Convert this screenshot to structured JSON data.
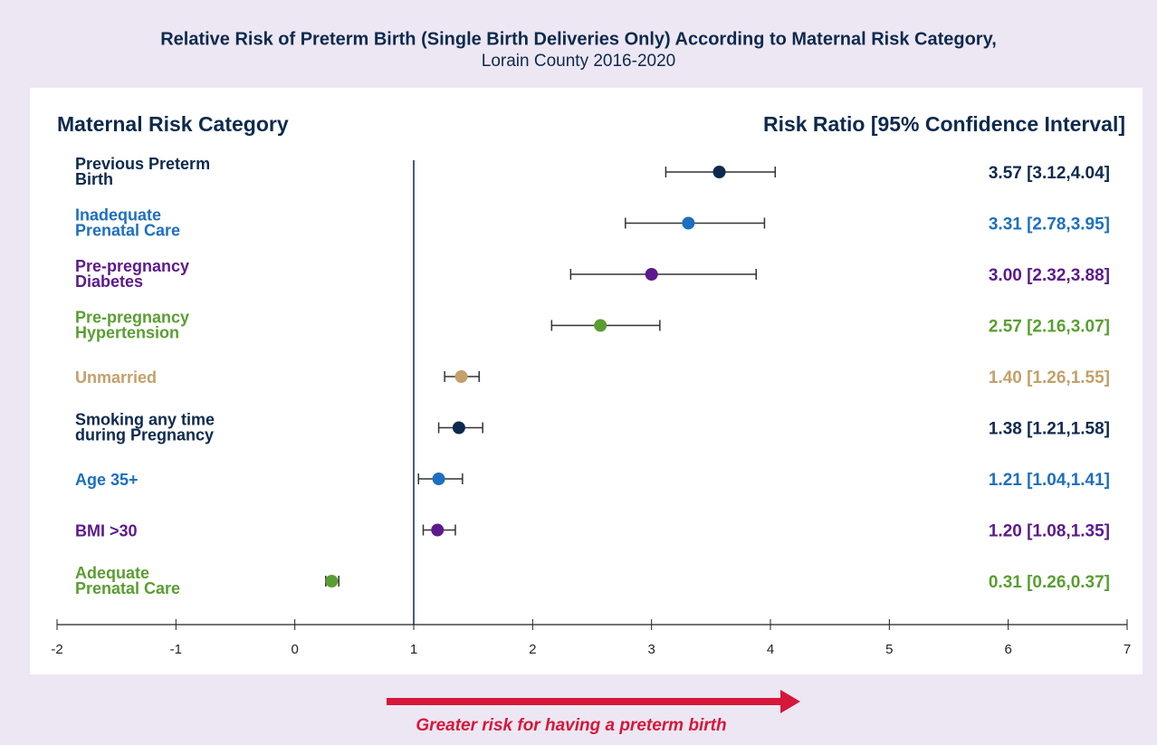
{
  "chart_data": {
    "type": "forest",
    "title": "Relative Risk of Preterm Birth (Single Birth Deliveries Only) According to Maternal Risk Category,",
    "subtitle": "Lorain County 2016-2020",
    "category_header": "Maternal Risk Category",
    "value_header": "Risk Ratio [95% Confidence Interval]",
    "categories": [
      [
        "Previous Preterm",
        "Birth"
      ],
      [
        "Inadequate",
        "Prenatal Care"
      ],
      [
        "Pre-pregnancy",
        "Diabetes"
      ],
      [
        "Pre-pregnancy",
        "Hypertension"
      ],
      [
        "Unmarried"
      ],
      [
        "Smoking any time",
        "during Pregnancy"
      ],
      [
        "Age 35+"
      ],
      [
        "BMI >30"
      ],
      [
        "Adequate",
        "Prenatal Care"
      ]
    ],
    "values": [
      3.57,
      3.31,
      3.0,
      2.57,
      1.4,
      1.38,
      1.21,
      1.2,
      0.31
    ],
    "ci_low": [
      3.12,
      2.78,
      2.32,
      2.16,
      1.26,
      1.21,
      1.04,
      1.08,
      0.26
    ],
    "ci_high": [
      4.04,
      3.95,
      3.88,
      3.07,
      1.55,
      1.58,
      1.41,
      1.35,
      0.37
    ],
    "value_labels": [
      "3.57 [3.12,4.04]",
      "3.31 [2.78,3.95]",
      "3.00 [2.32,3.88]",
      "2.57 [2.16,3.07]",
      "1.40 [1.26,1.55]",
      "1.38 [1.21,1.58]",
      "1.21 [1.04,1.41]",
      "1.20 [1.08,1.35]",
      "0.31 [0.26,0.37]"
    ],
    "colors": [
      "#0d2a4e",
      "#1e6fbf",
      "#5c1a8c",
      "#5a9e32",
      "#c4a06a",
      "#0d2a4e",
      "#1e6fbf",
      "#5c1a8c",
      "#5a9e32"
    ],
    "xlim": [
      -2,
      7
    ],
    "xticks": [
      -2,
      -1,
      0,
      1,
      2,
      3,
      4,
      5,
      6,
      7
    ],
    "reference_line": 1,
    "annotation": "Greater risk for having a preterm birth"
  }
}
